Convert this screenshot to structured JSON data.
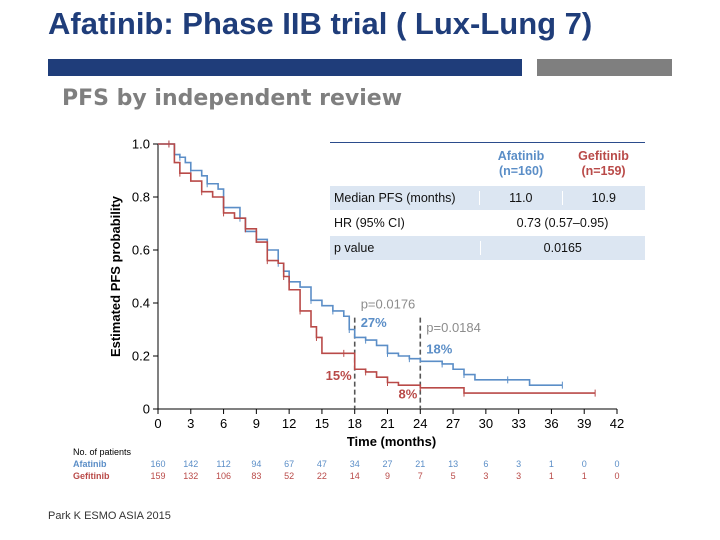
{
  "slide": {
    "title": "Afatinib: Phase IIB trial ( Lux-Lung 7)",
    "subtitle": "PFS by independent review",
    "citation": "Park K ESMO ASIA 2015"
  },
  "table": {
    "afatinib_header_1": "Afatinib",
    "afatinib_header_2": "(n=160)",
    "gefitinib_header_1": "Gefitinib",
    "gefitinib_header_2": "(n=159)",
    "rows": [
      {
        "label": "Median PFS (months)",
        "afatinib": "11.0",
        "gefitinib": "10.9"
      },
      {
        "label": "HR (95% CI)",
        "value": "0.73 (0.57–0.95)"
      },
      {
        "label": "p value",
        "value": "0.0165"
      }
    ]
  },
  "colors": {
    "afatinib": "#5b8ec7",
    "gefitinib": "#b94a48",
    "title": "#1f3d7a"
  },
  "chart_data": {
    "type": "line",
    "xlabel": "Time (months)",
    "ylabel": "Estimated PFS probability",
    "xlim": [
      0,
      42
    ],
    "ylim": [
      0,
      1.0
    ],
    "x_ticks": [
      "0",
      "3",
      "6",
      "9",
      "12",
      "15",
      "18",
      "21",
      "24",
      "27",
      "30",
      "33",
      "36",
      "39",
      "42"
    ],
    "y_ticks": [
      "0",
      "0.2",
      "0.4",
      "0.6",
      "0.8",
      "1.0"
    ],
    "series": [
      {
        "name": "Afatinib",
        "color": "#5b8ec7",
        "points": [
          [
            0,
            1.0
          ],
          [
            1,
            1.0
          ],
          [
            1.5,
            0.96
          ],
          [
            2,
            0.95
          ],
          [
            2.5,
            0.93
          ],
          [
            3,
            0.9
          ],
          [
            4,
            0.88
          ],
          [
            4.5,
            0.85
          ],
          [
            5.5,
            0.83
          ],
          [
            6,
            0.76
          ],
          [
            7,
            0.76
          ],
          [
            7.5,
            0.72
          ],
          [
            8,
            0.67
          ],
          [
            9,
            0.64
          ],
          [
            10,
            0.6
          ],
          [
            11,
            0.55
          ],
          [
            11.5,
            0.52
          ],
          [
            12,
            0.48
          ],
          [
            13,
            0.46
          ],
          [
            14,
            0.41
          ],
          [
            15,
            0.39
          ],
          [
            16,
            0.37
          ],
          [
            17,
            0.35
          ],
          [
            17.5,
            0.3
          ],
          [
            18,
            0.27
          ],
          [
            19,
            0.26
          ],
          [
            20,
            0.24
          ],
          [
            21,
            0.21
          ],
          [
            22,
            0.2
          ],
          [
            23,
            0.19
          ],
          [
            24,
            0.18
          ],
          [
            26,
            0.17
          ],
          [
            27,
            0.15
          ],
          [
            28,
            0.13
          ],
          [
            29,
            0.11
          ],
          [
            32,
            0.11
          ],
          [
            34,
            0.09
          ],
          [
            37,
            0.09
          ]
        ]
      },
      {
        "name": "Gefitinib",
        "color": "#b94a48",
        "points": [
          [
            0,
            1.0
          ],
          [
            1,
            1.0
          ],
          [
            1.5,
            0.93
          ],
          [
            2,
            0.89
          ],
          [
            3,
            0.86
          ],
          [
            4,
            0.82
          ],
          [
            5,
            0.8
          ],
          [
            6,
            0.74
          ],
          [
            7,
            0.72
          ],
          [
            8,
            0.68
          ],
          [
            9,
            0.63
          ],
          [
            10,
            0.56
          ],
          [
            11,
            0.55
          ],
          [
            11.5,
            0.5
          ],
          [
            12,
            0.45
          ],
          [
            13,
            0.37
          ],
          [
            14,
            0.31
          ],
          [
            14.5,
            0.27
          ],
          [
            15,
            0.21
          ],
          [
            17,
            0.21
          ],
          [
            18,
            0.15
          ],
          [
            19,
            0.14
          ],
          [
            20,
            0.12
          ],
          [
            21,
            0.1
          ],
          [
            22,
            0.09
          ],
          [
            24,
            0.08
          ],
          [
            27,
            0.08
          ],
          [
            28,
            0.06
          ],
          [
            35,
            0.06
          ],
          [
            40,
            0.06
          ]
        ]
      }
    ],
    "annotations": [
      {
        "text": "p=0.0176",
        "x": 18,
        "y": 0.38,
        "color": "#8c8c8c"
      },
      {
        "text": "27%",
        "x": 18,
        "y": 0.31,
        "color": "#5b8ec7"
      },
      {
        "text": "15%",
        "x": 18,
        "y": 0.11,
        "color": "#b94a48"
      },
      {
        "text": "p=0.0184",
        "x": 24,
        "y": 0.29,
        "color": "#8c8c8c"
      },
      {
        "text": "18%",
        "x": 24,
        "y": 0.21,
        "color": "#5b8ec7"
      },
      {
        "text": "8%",
        "x": 24,
        "y": 0.04,
        "color": "#b94a48"
      }
    ],
    "ref_lines_x": [
      18,
      24
    ],
    "at_risk": {
      "title": "No. of patients",
      "rows": [
        {
          "name": "Afatinib",
          "color": "#5b8ec7",
          "values": [
            "160",
            "142",
            "112",
            "94",
            "67",
            "47",
            "34",
            "27",
            "21",
            "13",
            "6",
            "3",
            "1",
            "0",
            "0"
          ]
        },
        {
          "name": "Gefitinib",
          "color": "#b94a48",
          "values": [
            "159",
            "132",
            "106",
            "83",
            "52",
            "22",
            "14",
            "9",
            "7",
            "5",
            "3",
            "3",
            "1",
            "1",
            "0"
          ]
        }
      ]
    }
  }
}
